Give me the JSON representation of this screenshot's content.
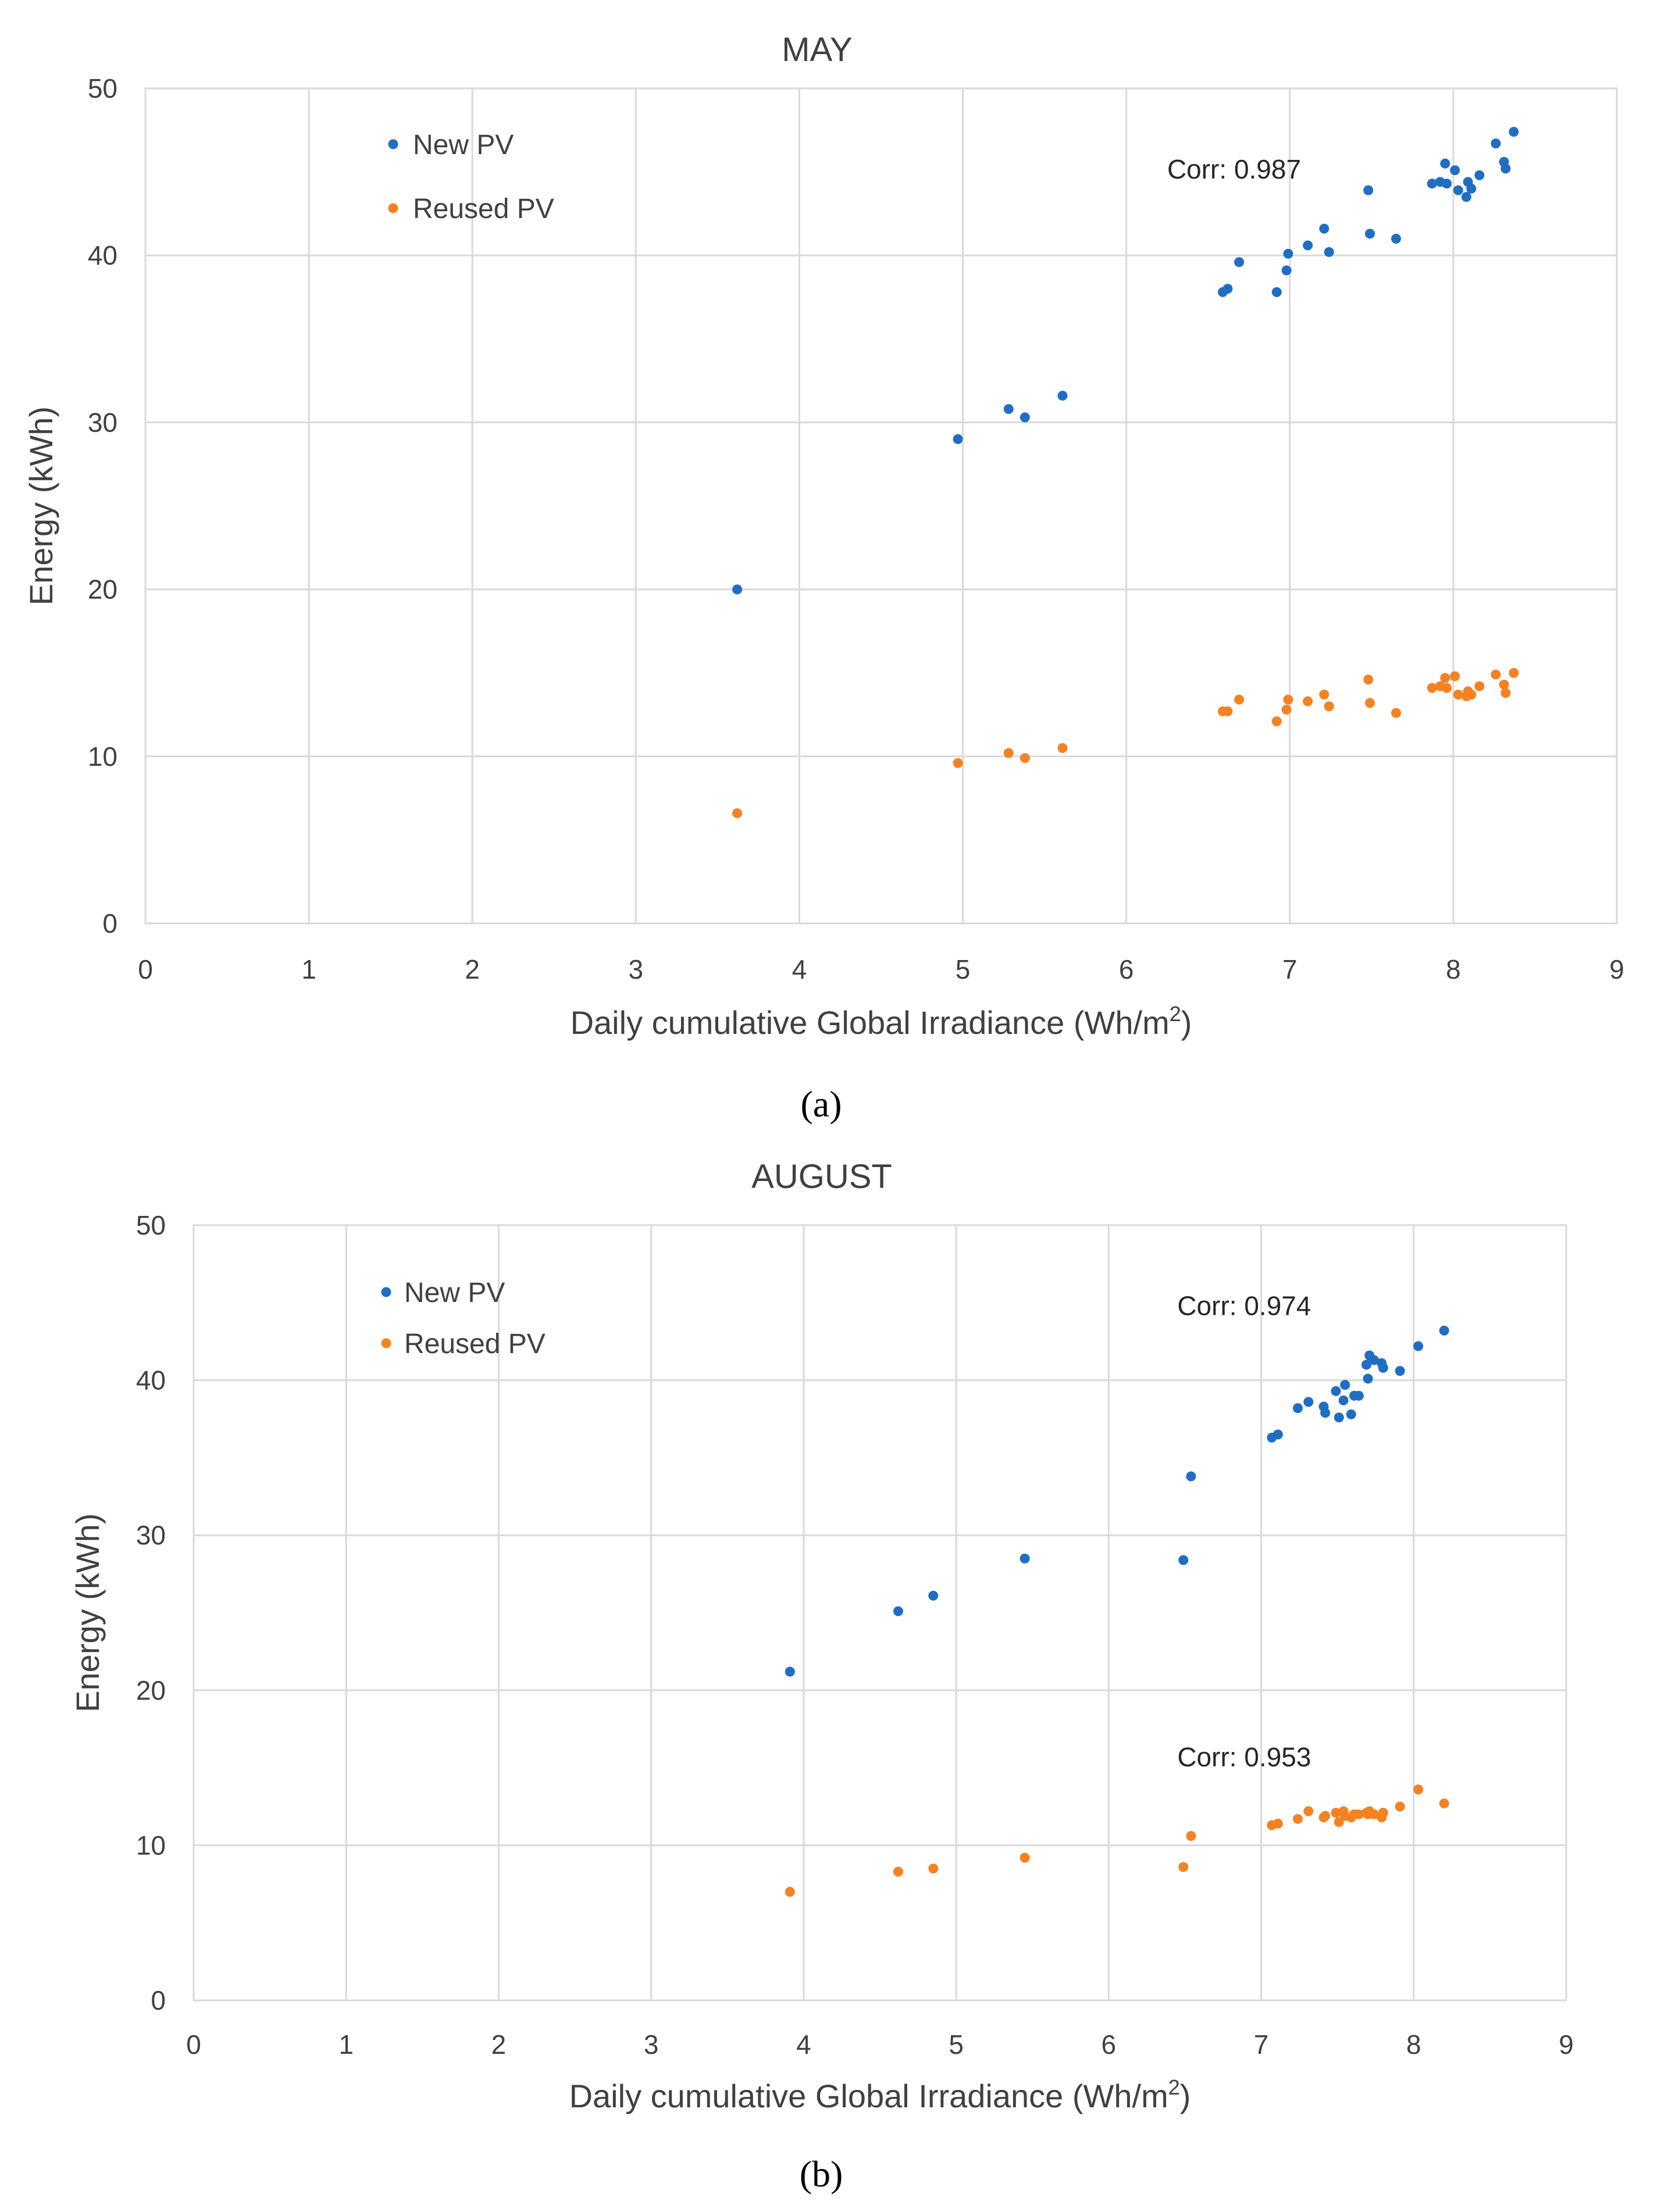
{
  "chart_data": [
    {
      "type": "scatter",
      "title": "MAY",
      "panel_label": "(a)",
      "xlabel": "Daily cumulative Global Irradiance (Wh/m",
      "xlabel_sup": "2",
      "xlabel_end": ")",
      "ylabel": "Energy (kWh)",
      "xlim": [
        0,
        9
      ],
      "ylim": [
        0,
        50
      ],
      "xticks": [
        "0",
        "1",
        "2",
        "3",
        "4",
        "5",
        "6",
        "7",
        "8",
        "9"
      ],
      "yticks": [
        "0",
        "10",
        "20",
        "30",
        "40",
        "50"
      ],
      "grid": true,
      "legend_position": "top-left",
      "annotations": [
        {
          "text": "Corr: 0.987",
          "x": 6.25,
          "y": 44.6
        }
      ],
      "series": [
        {
          "name": "New PV",
          "color": "#1f6ec4",
          "points": [
            [
              3.62,
              20.0
            ],
            [
              4.97,
              29.0
            ],
            [
              5.28,
              30.8
            ],
            [
              5.38,
              30.3
            ],
            [
              5.61,
              31.6
            ],
            [
              6.59,
              37.8
            ],
            [
              6.62,
              38.0
            ],
            [
              6.69,
              39.6
            ],
            [
              6.92,
              37.8
            ],
            [
              6.98,
              39.1
            ],
            [
              6.99,
              40.1
            ],
            [
              7.11,
              40.6
            ],
            [
              7.21,
              41.6
            ],
            [
              7.24,
              40.2
            ],
            [
              7.48,
              43.9
            ],
            [
              7.49,
              41.3
            ],
            [
              7.65,
              41.0
            ],
            [
              7.87,
              44.3
            ],
            [
              7.92,
              44.4
            ],
            [
              7.95,
              45.5
            ],
            [
              7.96,
              44.3
            ],
            [
              8.01,
              45.1
            ],
            [
              8.03,
              43.9
            ],
            [
              8.08,
              43.5
            ],
            [
              8.09,
              44.4
            ],
            [
              8.11,
              44.0
            ],
            [
              8.16,
              44.8
            ],
            [
              8.26,
              46.7
            ],
            [
              8.31,
              45.6
            ],
            [
              8.32,
              45.2
            ],
            [
              8.37,
              47.4
            ]
          ]
        },
        {
          "name": "Reused PV",
          "color": "#f58220",
          "points": [
            [
              3.62,
              6.6
            ],
            [
              4.97,
              9.6
            ],
            [
              5.28,
              10.2
            ],
            [
              5.38,
              9.9
            ],
            [
              5.61,
              10.5
            ],
            [
              6.59,
              12.7
            ],
            [
              6.62,
              12.7
            ],
            [
              6.69,
              13.4
            ],
            [
              6.92,
              12.1
            ],
            [
              6.98,
              12.8
            ],
            [
              6.99,
              13.4
            ],
            [
              7.11,
              13.3
            ],
            [
              7.21,
              13.7
            ],
            [
              7.24,
              13.0
            ],
            [
              7.48,
              14.6
            ],
            [
              7.49,
              13.2
            ],
            [
              7.65,
              12.6
            ],
            [
              7.87,
              14.1
            ],
            [
              7.92,
              14.2
            ],
            [
              7.95,
              14.7
            ],
            [
              7.96,
              14.1
            ],
            [
              8.01,
              14.8
            ],
            [
              8.03,
              13.7
            ],
            [
              8.08,
              13.6
            ],
            [
              8.09,
              13.9
            ],
            [
              8.11,
              13.7
            ],
            [
              8.16,
              14.2
            ],
            [
              8.26,
              14.9
            ],
            [
              8.31,
              14.3
            ],
            [
              8.32,
              13.8
            ],
            [
              8.37,
              15.0
            ]
          ]
        }
      ]
    },
    {
      "type": "scatter",
      "title": "AUGUST",
      "panel_label": "(b)",
      "xlabel": "Daily cumulative Global Irradiance (Wh/m",
      "xlabel_sup": "2",
      "xlabel_end": ")",
      "ylabel": "Energy (kWh)",
      "xlim": [
        0,
        9
      ],
      "ylim": [
        0,
        50
      ],
      "xticks": [
        "0",
        "1",
        "2",
        "3",
        "4",
        "5",
        "6",
        "7",
        "8",
        "9"
      ],
      "yticks": [
        "0",
        "10",
        "20",
        "30",
        "40",
        "50"
      ],
      "grid": true,
      "legend_position": "top-left",
      "annotations": [
        {
          "text": "Corr: 0.974",
          "x": 6.45,
          "y": 44.2
        },
        {
          "text": "Corr: 0.953",
          "x": 6.45,
          "y": 15.1
        }
      ],
      "series": [
        {
          "name": "New PV",
          "color": "#1f6ec4",
          "points": [
            [
              3.91,
              21.2
            ],
            [
              4.62,
              25.1
            ],
            [
              4.85,
              26.1
            ],
            [
              5.45,
              28.5
            ],
            [
              6.49,
              28.4
            ],
            [
              6.54,
              33.8
            ],
            [
              7.07,
              36.3
            ],
            [
              7.11,
              36.5
            ],
            [
              7.24,
              38.2
            ],
            [
              7.31,
              38.6
            ],
            [
              7.41,
              38.3
            ],
            [
              7.42,
              37.9
            ],
            [
              7.49,
              39.3
            ],
            [
              7.51,
              37.6
            ],
            [
              7.54,
              38.7
            ],
            [
              7.55,
              39.7
            ],
            [
              7.59,
              37.8
            ],
            [
              7.61,
              39.0
            ],
            [
              7.64,
              39.0
            ],
            [
              7.69,
              41.0
            ],
            [
              7.7,
              40.1
            ],
            [
              7.71,
              41.6
            ],
            [
              7.74,
              41.3
            ],
            [
              7.79,
              41.1
            ],
            [
              7.8,
              40.8
            ],
            [
              7.91,
              40.6
            ],
            [
              8.03,
              42.2
            ],
            [
              8.2,
              43.2
            ]
          ]
        },
        {
          "name": "Reused PV",
          "color": "#f58220",
          "points": [
            [
              3.91,
              7.0
            ],
            [
              4.62,
              8.3
            ],
            [
              4.85,
              8.5
            ],
            [
              5.45,
              9.2
            ],
            [
              6.49,
              8.6
            ],
            [
              6.54,
              10.6
            ],
            [
              7.07,
              11.3
            ],
            [
              7.11,
              11.4
            ],
            [
              7.24,
              11.7
            ],
            [
              7.31,
              12.2
            ],
            [
              7.41,
              11.8
            ],
            [
              7.42,
              11.9
            ],
            [
              7.49,
              12.1
            ],
            [
              7.51,
              11.5
            ],
            [
              7.54,
              12.2
            ],
            [
              7.55,
              11.9
            ],
            [
              7.59,
              11.8
            ],
            [
              7.61,
              12.0
            ],
            [
              7.64,
              12.0
            ],
            [
              7.69,
              12.1
            ],
            [
              7.7,
              12.0
            ],
            [
              7.71,
              12.2
            ],
            [
              7.74,
              12.0
            ],
            [
              7.79,
              11.8
            ],
            [
              7.8,
              12.1
            ],
            [
              7.91,
              12.5
            ],
            [
              8.03,
              13.6
            ],
            [
              8.2,
              12.7
            ]
          ]
        }
      ]
    }
  ]
}
